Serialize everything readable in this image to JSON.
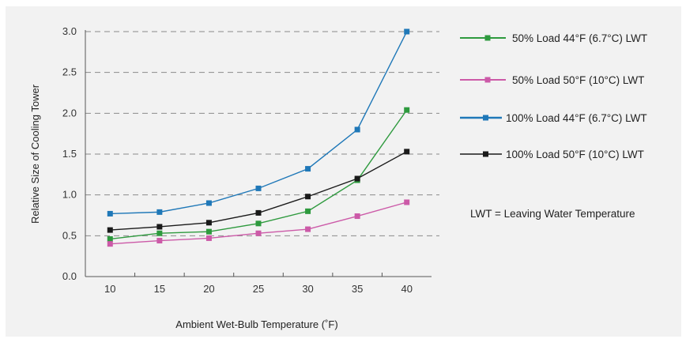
{
  "chart_data": {
    "type": "line",
    "xlabel": "Ambient Wet-Bulb Temperature (˚F)",
    "ylabel": "Relative Size of Cooling Tower",
    "x": [
      10,
      15,
      20,
      25,
      30,
      35,
      40
    ],
    "x_tick_labels": [
      "10",
      "15",
      "20",
      "25",
      "30",
      "35",
      "40"
    ],
    "y_tick_labels": [
      "0.0",
      "0.5",
      "1.0",
      "1.5",
      "2.0",
      "2.5",
      "3.0"
    ],
    "ylim": [
      0,
      3.0
    ],
    "grid": "horizontal dashed",
    "legend_position": "right",
    "series": [
      {
        "name": "50% Load 44°F (6.7°C) LWT",
        "color": "#2e9a3e",
        "values": [
          0.46,
          0.53,
          0.55,
          0.65,
          0.8,
          1.18,
          2.04
        ]
      },
      {
        "name": "50% Load 50°F (10°C) LWT",
        "color": "#cc5aa8",
        "values": [
          0.4,
          0.44,
          0.47,
          0.53,
          0.58,
          0.74,
          0.91
        ]
      },
      {
        "name": "100% Load 44°F (6.7°C) LWT",
        "color": "#1f78b8",
        "values": [
          0.77,
          0.79,
          0.9,
          1.08,
          1.32,
          1.8,
          3.0
        ]
      },
      {
        "name": "100% Load 50°F (10°C) LWT",
        "color": "#1a1a1a",
        "values": [
          0.57,
          0.61,
          0.66,
          0.78,
          0.98,
          1.2,
          1.53
        ]
      }
    ],
    "annotation": "LWT = Leaving Water Temperature"
  }
}
